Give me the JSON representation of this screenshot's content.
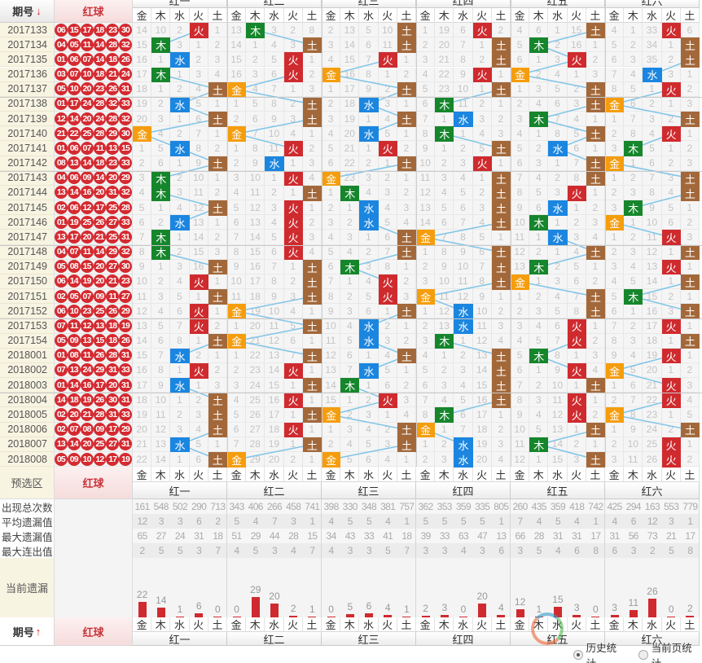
{
  "header": {
    "issue_label": "期号",
    "sort_icon": "arrow-down",
    "red_ball_label": "红球",
    "elements": [
      "金",
      "木",
      "水",
      "火",
      "土"
    ]
  },
  "colors": {
    "金": "#f59d0c",
    "木": "#16862c",
    "水": "#1b86e0",
    "火": "#cf2b2f",
    "土": "#a3683a",
    "line": "#7fc4e8",
    "ball": "#d42a30"
  },
  "rows": [
    {
      "issue": "2017133",
      "balls": [
        "06",
        "15",
        "17",
        "18",
        "23",
        "30"
      ]
    },
    {
      "issue": "2017134",
      "balls": [
        "04",
        "05",
        "11",
        "14",
        "28",
        "32"
      ]
    },
    {
      "issue": "2017135",
      "balls": [
        "01",
        "06",
        "07",
        "14",
        "18",
        "26"
      ]
    },
    {
      "issue": "2017136",
      "balls": [
        "03",
        "07",
        "10",
        "18",
        "21",
        "24"
      ]
    },
    {
      "issue": "2017137",
      "balls": [
        "05",
        "10",
        "20",
        "23",
        "26",
        "31"
      ]
    },
    {
      "issue": "2017138",
      "balls": [
        "01",
        "17",
        "24",
        "28",
        "32",
        "33"
      ]
    },
    {
      "issue": "2017139",
      "balls": [
        "12",
        "14",
        "20",
        "24",
        "28",
        "32"
      ]
    },
    {
      "issue": "2017140",
      "balls": [
        "21",
        "22",
        "25",
        "28",
        "29",
        "30"
      ]
    },
    {
      "issue": "2017141",
      "balls": [
        "01",
        "06",
        "07",
        "11",
        "13",
        "15"
      ]
    },
    {
      "issue": "2017142",
      "balls": [
        "08",
        "13",
        "14",
        "18",
        "23",
        "33"
      ]
    },
    {
      "issue": "2017143",
      "balls": [
        "04",
        "06",
        "09",
        "14",
        "20",
        "29"
      ]
    },
    {
      "issue": "2017144",
      "balls": [
        "13",
        "14",
        "16",
        "20",
        "31",
        "32"
      ]
    },
    {
      "issue": "2017145",
      "balls": [
        "02",
        "06",
        "12",
        "17",
        "25",
        "28"
      ]
    },
    {
      "issue": "2017146",
      "balls": [
        "01",
        "19",
        "25",
        "26",
        "27",
        "33"
      ]
    },
    {
      "issue": "2017147",
      "balls": [
        "13",
        "17",
        "20",
        "21",
        "25",
        "31"
      ]
    },
    {
      "issue": "2017148",
      "balls": [
        "04",
        "07",
        "11",
        "14",
        "29",
        "32"
      ]
    },
    {
      "issue": "2017149",
      "balls": [
        "05",
        "08",
        "15",
        "20",
        "27",
        "30"
      ]
    },
    {
      "issue": "2017150",
      "balls": [
        "06",
        "14",
        "19",
        "20",
        "21",
        "23"
      ]
    },
    {
      "issue": "2017151",
      "balls": [
        "02",
        "05",
        "07",
        "09",
        "11",
        "27"
      ]
    },
    {
      "issue": "2017152",
      "balls": [
        "06",
        "10",
        "23",
        "25",
        "26",
        "29"
      ]
    },
    {
      "issue": "2017153",
      "balls": [
        "07",
        "11",
        "12",
        "13",
        "18",
        "19"
      ]
    },
    {
      "issue": "2017154",
      "balls": [
        "05",
        "09",
        "13",
        "15",
        "18",
        "26"
      ]
    },
    {
      "issue": "2018001",
      "balls": [
        "01",
        "08",
        "11",
        "26",
        "28",
        "31"
      ]
    },
    {
      "issue": "2018002",
      "balls": [
        "07",
        "13",
        "24",
        "29",
        "31",
        "33"
      ]
    },
    {
      "issue": "2018003",
      "balls": [
        "01",
        "14",
        "16",
        "17",
        "20",
        "31"
      ]
    },
    {
      "issue": "2018004",
      "balls": [
        "14",
        "18",
        "19",
        "26",
        "30",
        "31"
      ]
    },
    {
      "issue": "2018005",
      "balls": [
        "02",
        "20",
        "21",
        "28",
        "31",
        "33"
      ]
    },
    {
      "issue": "2018006",
      "balls": [
        "02",
        "07",
        "08",
        "09",
        "17",
        "29"
      ]
    },
    {
      "issue": "2018007",
      "balls": [
        "13",
        "14",
        "20",
        "25",
        "27",
        "31"
      ]
    },
    {
      "issue": "2018008",
      "balls": [
        "05",
        "09",
        "10",
        "12",
        "17",
        "19"
      ]
    }
  ],
  "groups": [
    {
      "name": "红一",
      "first_row": [
        14,
        10,
        2,
        null,
        1
      ],
      "hits": "火木水木土水土金水土木木土水木木土火土火火土水火水土土土水土"
    },
    {
      "name": "红二",
      "first_row": [
        13,
        null,
        3,
        2,
        8
      ],
      "hits": "木土火火金土土金火水火土火火火火土土土金土金土火土火土火土金"
    },
    {
      "name": "红三",
      "first_row": [
        2,
        13,
        5,
        10,
        null
      ],
      "hits": "土土火金土水土水火土金木水水土土木火火土水水土水木火金土土金"
    },
    {
      "name": "红四",
      "first_row": [
        1,
        19,
        6,
        null,
        2
      ],
      "hits": "火土土火土木水木土火土土土土金土土土金水水木土土土土木金水水"
    },
    {
      "name": "红五",
      "first_row": [
        4,
        6,
        1,
        15,
        null
      ],
      "hits": "土木火金土土木土水土土火水木水土木金土土火火木火土火火土木土"
    },
    {
      "name": "红六",
      "first_row": [
        4,
        1,
        33,
        null,
        6
      ],
      "hits": "火土土水火金土火木金土土木金火土火土木土火土火金火火金土火火"
    }
  ],
  "footer": {
    "preselect_label": "预选区",
    "red_ball_label": "红球"
  },
  "stats": [
    {
      "label": "出现总次数",
      "values": [
        [
          161,
          548,
          502,
          290,
          713
        ],
        [
          343,
          406,
          266,
          458,
          741
        ],
        [
          398,
          330,
          348,
          381,
          757
        ],
        [
          362,
          353,
          359,
          335,
          805
        ],
        [
          260,
          435,
          359,
          418,
          742
        ],
        [
          425,
          294,
          163,
          553,
          779
        ]
      ]
    },
    {
      "label": "平均遗漏值",
      "values": [
        [
          12,
          3,
          3,
          6,
          2
        ],
        [
          5,
          4,
          7,
          3,
          1
        ],
        [
          4,
          5,
          5,
          4,
          1
        ],
        [
          5,
          5,
          5,
          5,
          1
        ],
        [
          7,
          4,
          5,
          4,
          1
        ],
        [
          4,
          6,
          12,
          3,
          1
        ]
      ]
    },
    {
      "label": "最大遗漏值",
      "values": [
        [
          65,
          27,
          24,
          31,
          18
        ],
        [
          51,
          29,
          44,
          28,
          15
        ],
        [
          34,
          43,
          33,
          41,
          18
        ],
        [
          39,
          33,
          63,
          47,
          13
        ],
        [
          66,
          28,
          31,
          31,
          17
        ],
        [
          31,
          56,
          73,
          21,
          17
        ]
      ]
    },
    {
      "label": "最大连出值",
      "values": [
        [
          2,
          5,
          5,
          3,
          7
        ],
        [
          4,
          5,
          3,
          4,
          7
        ],
        [
          4,
          3,
          3,
          5,
          7
        ],
        [
          3,
          3,
          4,
          3,
          6
        ],
        [
          3,
          5,
          4,
          6,
          8
        ],
        [
          6,
          3,
          2,
          5,
          8
        ]
      ]
    }
  ],
  "current_miss": {
    "label": "当前遗漏",
    "values": [
      [
        22,
        14,
        1,
        6,
        0
      ],
      [
        0,
        29,
        20,
        2,
        1
      ],
      [
        0,
        5,
        6,
        4,
        1
      ],
      [
        2,
        3,
        0,
        20,
        4
      ],
      [
        12,
        1,
        15,
        3,
        0
      ],
      [
        3,
        11,
        26,
        0,
        2
      ]
    ]
  },
  "bottom_header": {
    "issue_label": "期号",
    "sort_icon": "arrow-up",
    "red_ball_label": "红球"
  },
  "options": [
    {
      "label": "历史统计",
      "checked": true
    },
    {
      "label": "当前页统计",
      "checked": false
    }
  ]
}
